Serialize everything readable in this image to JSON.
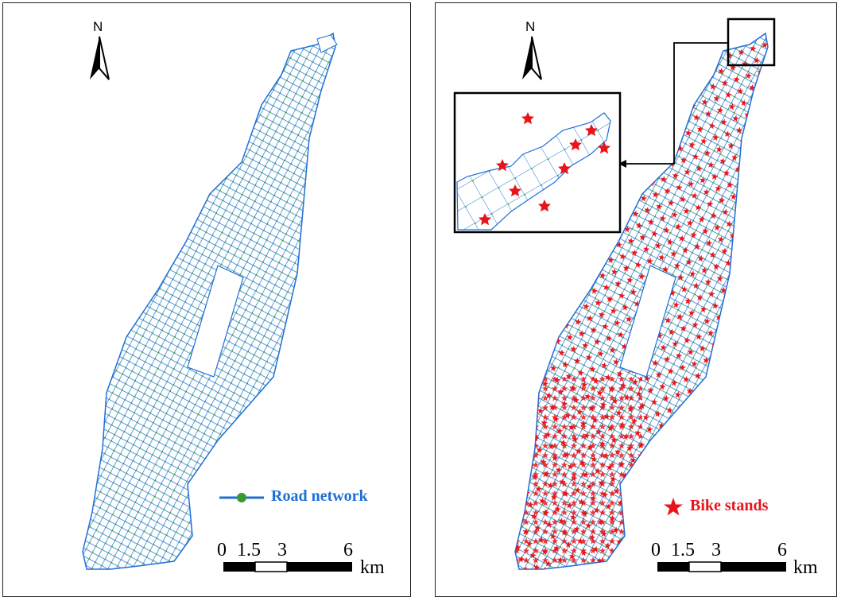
{
  "north_label": "N",
  "left_panel": {
    "legend_label": "Road network",
    "legend_color": "#1f6fd6"
  },
  "right_panel": {
    "legend_label": "Bike stands",
    "legend_color": "#e8141b"
  },
  "scale_bar": {
    "ticks": [
      "0",
      "1.5",
      "3",
      "6"
    ],
    "unit": "km"
  },
  "colors": {
    "road": "#1f7ad6",
    "node": "#3a9a2a",
    "bike_stand": "#e8141b"
  }
}
